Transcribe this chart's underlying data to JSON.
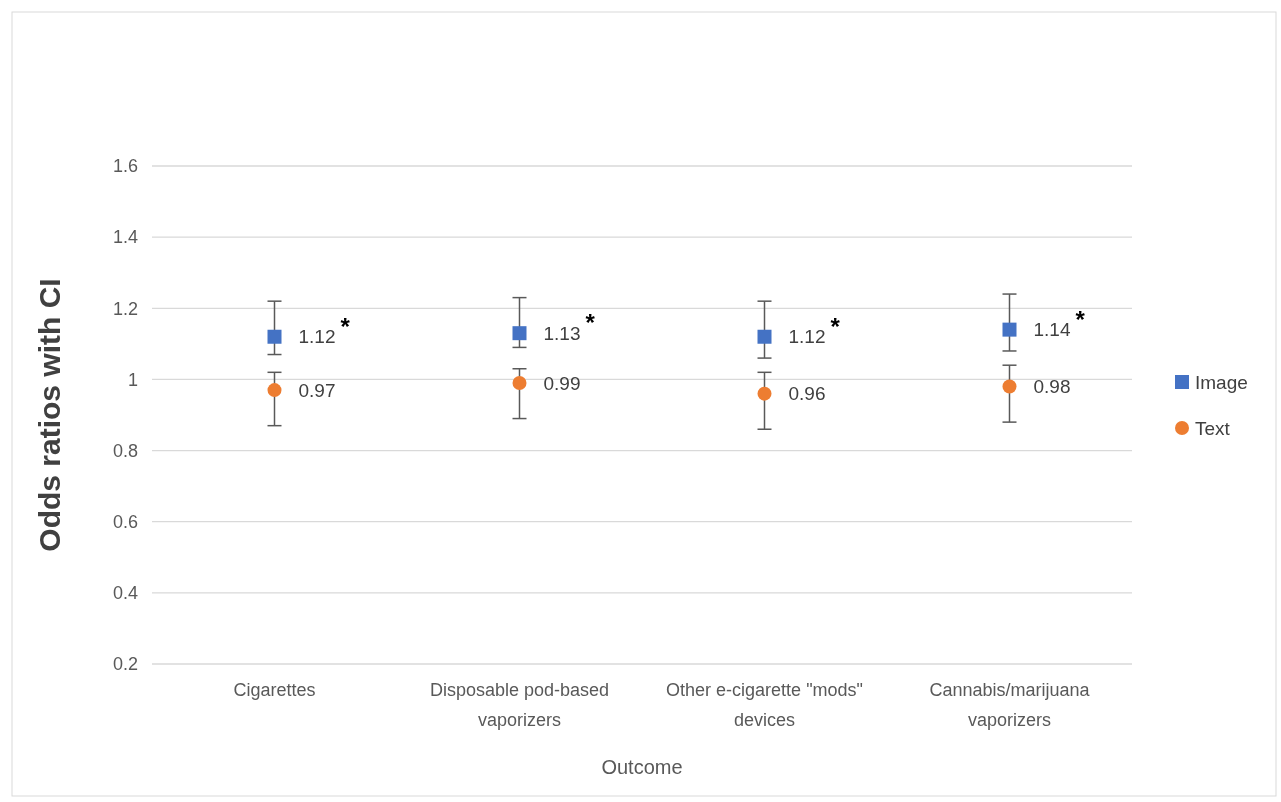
{
  "chart_data": {
    "type": "scatter",
    "xlabel": "Outcome",
    "ylabel": "Odds ratios with CI",
    "categories": [
      "Cigarettes",
      "Disposable pod-based vaporizers",
      "Other e-cigarette \"mods\" devices",
      "Cannabis/marijuana vaporizers"
    ],
    "series": [
      {
        "name": "Image",
        "color": "#4472c4",
        "marker": "square",
        "values": [
          1.12,
          1.13,
          1.12,
          1.14
        ],
        "errors": [
          [
            1.07,
            1.22
          ],
          [
            1.09,
            1.23
          ],
          [
            1.06,
            1.22
          ],
          [
            1.08,
            1.24
          ]
        ]
      },
      {
        "name": "Text",
        "color": "#ed7d31",
        "marker": "circle",
        "values": [
          0.97,
          0.99,
          0.96,
          0.98
        ],
        "errors": [
          [
            0.87,
            1.02
          ],
          [
            0.89,
            1.03
          ],
          [
            0.86,
            1.02
          ],
          [
            0.88,
            1.04
          ]
        ]
      }
    ],
    "ylim": [
      0.2,
      1.6
    ],
    "yticks": [
      0.2,
      0.4,
      0.6,
      0.8,
      1,
      1.2,
      1.4,
      1.6
    ],
    "grid": "y",
    "legend": "right",
    "data_labels": true,
    "annotations": [
      "*",
      "*",
      "*",
      "*"
    ]
  }
}
